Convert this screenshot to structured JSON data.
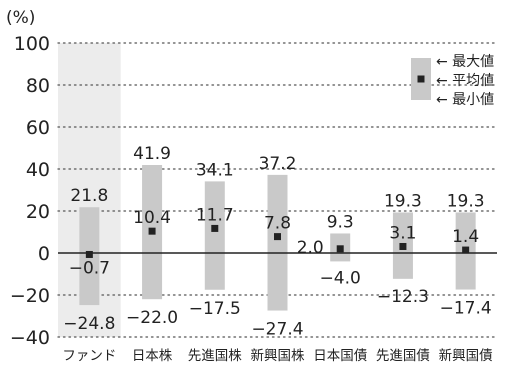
{
  "chart_data": {
    "type": "range",
    "unit": "(%)",
    "ylim": [
      -40,
      100
    ],
    "yticks": [
      100,
      80,
      60,
      40,
      20,
      0,
      -20,
      -40
    ],
    "grid": "dotted-horizontal",
    "categories": [
      "ファンド",
      "日本株",
      "先進国株",
      "新興国株",
      "日本国債",
      "先進国債",
      "新興国債"
    ],
    "highlighted_category": "ファンド",
    "max": [
      21.8,
      41.9,
      34.1,
      37.2,
      9.3,
      19.3,
      19.3
    ],
    "avg": [
      -0.7,
      10.4,
      11.7,
      7.8,
      2.0,
      3.1,
      1.4
    ],
    "min": [
      -24.8,
      -22.0,
      -17.5,
      -27.4,
      -4.0,
      -12.3,
      -17.4
    ],
    "labels": {
      "max": [
        "21.8",
        "41.9",
        "34.1",
        "37.2",
        "9.3",
        "19.3",
        "19.3"
      ],
      "avg": [
        "−0.7",
        "10.4",
        "11.7",
        "7.8",
        "2.0",
        "3.1",
        "1.4"
      ],
      "min": [
        "−24.8",
        "−22.0",
        "−17.5",
        "−27.4",
        "−4.0",
        "−12.3",
        "−17.4"
      ]
    },
    "legend": {
      "position": "top-right",
      "items": [
        "最大値",
        "平均値",
        "最小値"
      ],
      "arrow": "←"
    },
    "colors": {
      "bar": "#c9c9c9",
      "highlight": "#ececec",
      "marker": "#222222",
      "grid": "#555555",
      "axis": "#222222"
    }
  }
}
